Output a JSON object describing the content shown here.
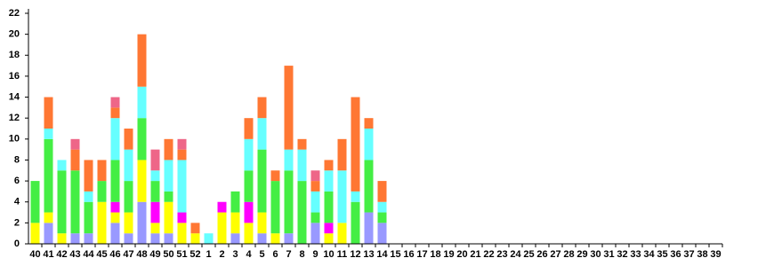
{
  "chart_data": {
    "type": "stacked_bar",
    "categories": [
      "40",
      "41",
      "42",
      "43",
      "44",
      "45",
      "46",
      "47",
      "48",
      "49",
      "50",
      "51",
      "52",
      "1",
      "2",
      "3",
      "4",
      "5",
      "6",
      "7",
      "8",
      "9",
      "10",
      "11",
      "12",
      "13",
      "14",
      "15",
      "16",
      "17",
      "18",
      "19",
      "20",
      "21",
      "22",
      "23",
      "24",
      "25",
      "26",
      "27",
      "28",
      "29",
      "30",
      "31",
      "32",
      "33",
      "34",
      "35",
      "36",
      "37",
      "38",
      "39"
    ],
    "series": [
      {
        "color": "#9999ff",
        "values": [
          0,
          2,
          0,
          1,
          1,
          0,
          2,
          1,
          4,
          1,
          1,
          0,
          0,
          0,
          0,
          1,
          0,
          1,
          0,
          1,
          0,
          2,
          0,
          0,
          0,
          3,
          2,
          0,
          0,
          0,
          0,
          0,
          0,
          0,
          0,
          0,
          0,
          0,
          0,
          0,
          0,
          0,
          0,
          0,
          0,
          0,
          0,
          0,
          0,
          0,
          0,
          0
        ]
      },
      {
        "color": "#ffff00",
        "values": [
          2,
          1,
          1,
          0,
          0,
          4,
          1,
          2,
          4,
          1,
          3,
          2,
          1,
          0,
          3,
          2,
          2,
          2,
          1,
          0,
          0,
          0,
          1,
          2,
          0,
          0,
          0,
          0,
          0,
          0,
          0,
          0,
          0,
          0,
          0,
          0,
          0,
          0,
          0,
          0,
          0,
          0,
          0,
          0,
          0,
          0,
          0,
          0,
          0,
          0,
          0,
          0
        ]
      },
      {
        "color": "#ff00ff",
        "values": [
          0,
          0,
          0,
          0,
          0,
          0,
          1,
          0,
          0,
          2,
          0,
          1,
          0,
          0,
          1,
          0,
          2,
          0,
          0,
          0,
          0,
          0,
          1,
          0,
          0,
          0,
          0,
          0,
          0,
          0,
          0,
          0,
          0,
          0,
          0,
          0,
          0,
          0,
          0,
          0,
          0,
          0,
          0,
          0,
          0,
          0,
          0,
          0,
          0,
          0,
          0,
          0
        ]
      },
      {
        "color": "#44ee44",
        "values": [
          4,
          7,
          6,
          6,
          3,
          2,
          4,
          3,
          4,
          2,
          1,
          0,
          0,
          0,
          0,
          2,
          3,
          6,
          5,
          6,
          6,
          1,
          3,
          0,
          4,
          5,
          1,
          0,
          0,
          0,
          0,
          0,
          0,
          0,
          0,
          0,
          0,
          0,
          0,
          0,
          0,
          0,
          0,
          0,
          0,
          0,
          0,
          0,
          0,
          0,
          0,
          0
        ]
      },
      {
        "color": "#66ffff",
        "values": [
          0,
          1,
          1,
          0,
          1,
          0,
          4,
          3,
          3,
          1,
          3,
          5,
          0,
          1,
          0,
          0,
          3,
          3,
          0,
          2,
          3,
          2,
          2,
          5,
          1,
          3,
          1,
          0,
          0,
          0,
          0,
          0,
          0,
          0,
          0,
          0,
          0,
          0,
          0,
          0,
          0,
          0,
          0,
          0,
          0,
          0,
          0,
          0,
          0,
          0,
          0,
          0
        ]
      },
      {
        "color": "#ff7733",
        "values": [
          0,
          3,
          0,
          2,
          3,
          2,
          1,
          2,
          5,
          0,
          2,
          1,
          1,
          0,
          0,
          0,
          2,
          2,
          1,
          8,
          1,
          1,
          1,
          3,
          9,
          1,
          2,
          0,
          0,
          0,
          0,
          0,
          0,
          0,
          0,
          0,
          0,
          0,
          0,
          0,
          0,
          0,
          0,
          0,
          0,
          0,
          0,
          0,
          0,
          0,
          0,
          0
        ]
      },
      {
        "color": "#ee6688",
        "values": [
          0,
          0,
          0,
          1,
          0,
          0,
          1,
          0,
          0,
          2,
          0,
          1,
          0,
          0,
          0,
          0,
          0,
          0,
          0,
          0,
          0,
          1,
          0,
          0,
          0,
          0,
          0,
          0,
          0,
          0,
          0,
          0,
          0,
          0,
          0,
          0,
          0,
          0,
          0,
          0,
          0,
          0,
          0,
          0,
          0,
          0,
          0,
          0,
          0,
          0,
          0,
          0
        ]
      }
    ],
    "ylim": [
      0,
      22
    ],
    "yticks": [
      0,
      2,
      4,
      6,
      8,
      10,
      12,
      14,
      16,
      18,
      20,
      22
    ],
    "grid": false
  }
}
